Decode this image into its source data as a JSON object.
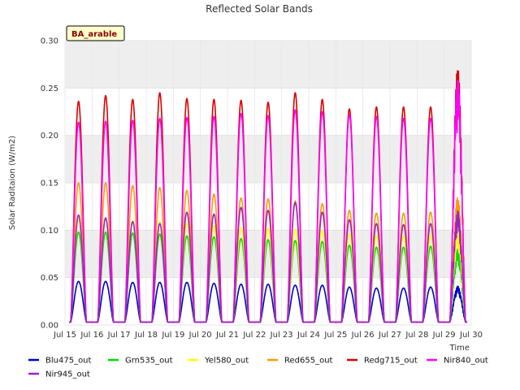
{
  "chart_data": {
    "type": "line",
    "title": "Reflected Solar Bands",
    "badge": "BA_arable",
    "xlabel": "Time",
    "ylabel": "Solar Raditaion (W/m2)",
    "xlim": [
      15,
      30
    ],
    "ylim": [
      0,
      0.3
    ],
    "x_ticks": [
      {
        "value": 15,
        "label": "Jul 15"
      },
      {
        "value": 16,
        "label": "Jul 16"
      },
      {
        "value": 17,
        "label": "Jul 17"
      },
      {
        "value": 18,
        "label": "Jul 18"
      },
      {
        "value": 19,
        "label": "Jul 19"
      },
      {
        "value": 20,
        "label": "Jul 20"
      },
      {
        "value": 21,
        "label": "Jul 21"
      },
      {
        "value": 22,
        "label": "Jul 22"
      },
      {
        "value": 23,
        "label": "Jul 23"
      },
      {
        "value": 24,
        "label": "Jul 24"
      },
      {
        "value": 25,
        "label": "Jul 25"
      },
      {
        "value": 26,
        "label": "Jul 26"
      },
      {
        "value": 27,
        "label": "Jul 27"
      },
      {
        "value": 28,
        "label": "Jul 28"
      },
      {
        "value": 29,
        "label": "Jul 29"
      },
      {
        "value": 30,
        "label": "Jul 30"
      }
    ],
    "y_ticks": [
      {
        "value": 0.0,
        "label": "0.00"
      },
      {
        "value": 0.05,
        "label": "0.05"
      },
      {
        "value": 0.1,
        "label": "0.10"
      },
      {
        "value": 0.15,
        "label": "0.15"
      },
      {
        "value": 0.2,
        "label": "0.20"
      },
      {
        "value": 0.25,
        "label": "0.25"
      },
      {
        "value": 0.3,
        "label": "0.30"
      }
    ],
    "grid": true,
    "legend_placement": "bottom",
    "baseline": 0.003,
    "day_centers": [
      15.5,
      16.5,
      17.5,
      18.5,
      19.5,
      20.5,
      21.5,
      22.5,
      23.5,
      24.5,
      25.5,
      26.5,
      27.5,
      28.5,
      29.5
    ],
    "series": [
      {
        "name": "Blu475_out",
        "color": "#0000cc",
        "peaks": [
          0.046,
          0.046,
          0.045,
          0.045,
          0.045,
          0.044,
          0.043,
          0.043,
          0.042,
          0.042,
          0.04,
          0.039,
          0.039,
          0.04,
          0.041
        ]
      },
      {
        "name": "Grn535_out",
        "color": "#00dd00",
        "peaks": [
          0.098,
          0.098,
          0.097,
          0.096,
          0.094,
          0.093,
          0.091,
          0.09,
          0.089,
          0.088,
          0.084,
          0.082,
          0.082,
          0.083,
          0.08
        ]
      },
      {
        "name": "Yel580_out",
        "color": "#ffff00",
        "peaks": [
          0.112,
          0.112,
          0.11,
          0.109,
          0.107,
          0.105,
          0.103,
          0.102,
          0.101,
          0.1,
          0.096,
          0.094,
          0.094,
          0.095,
          0.1
        ]
      },
      {
        "name": "Red655_out",
        "color": "#ff9900",
        "peaks": [
          0.15,
          0.15,
          0.147,
          0.145,
          0.142,
          0.138,
          0.134,
          0.133,
          0.131,
          0.128,
          0.121,
          0.118,
          0.118,
          0.119,
          0.136
        ]
      },
      {
        "name": "Redg715_out",
        "color": "#dd0000",
        "peaks": [
          0.236,
          0.242,
          0.238,
          0.245,
          0.239,
          0.238,
          0.237,
          0.235,
          0.245,
          0.238,
          0.228,
          0.23,
          0.23,
          0.23,
          0.275
        ]
      },
      {
        "name": "Nir840_out",
        "color": "#ff00ff",
        "peaks": [
          0.214,
          0.215,
          0.216,
          0.218,
          0.219,
          0.22,
          0.223,
          0.221,
          0.227,
          0.225,
          0.222,
          0.22,
          0.218,
          0.218,
          0.262
        ]
      },
      {
        "name": "Nir945_out",
        "color": "#9922cc",
        "peaks": [
          0.116,
          0.113,
          0.109,
          0.107,
          0.119,
          0.117,
          0.124,
          0.121,
          0.129,
          0.119,
          0.111,
          0.107,
          0.106,
          0.107,
          0.121
        ]
      }
    ]
  }
}
